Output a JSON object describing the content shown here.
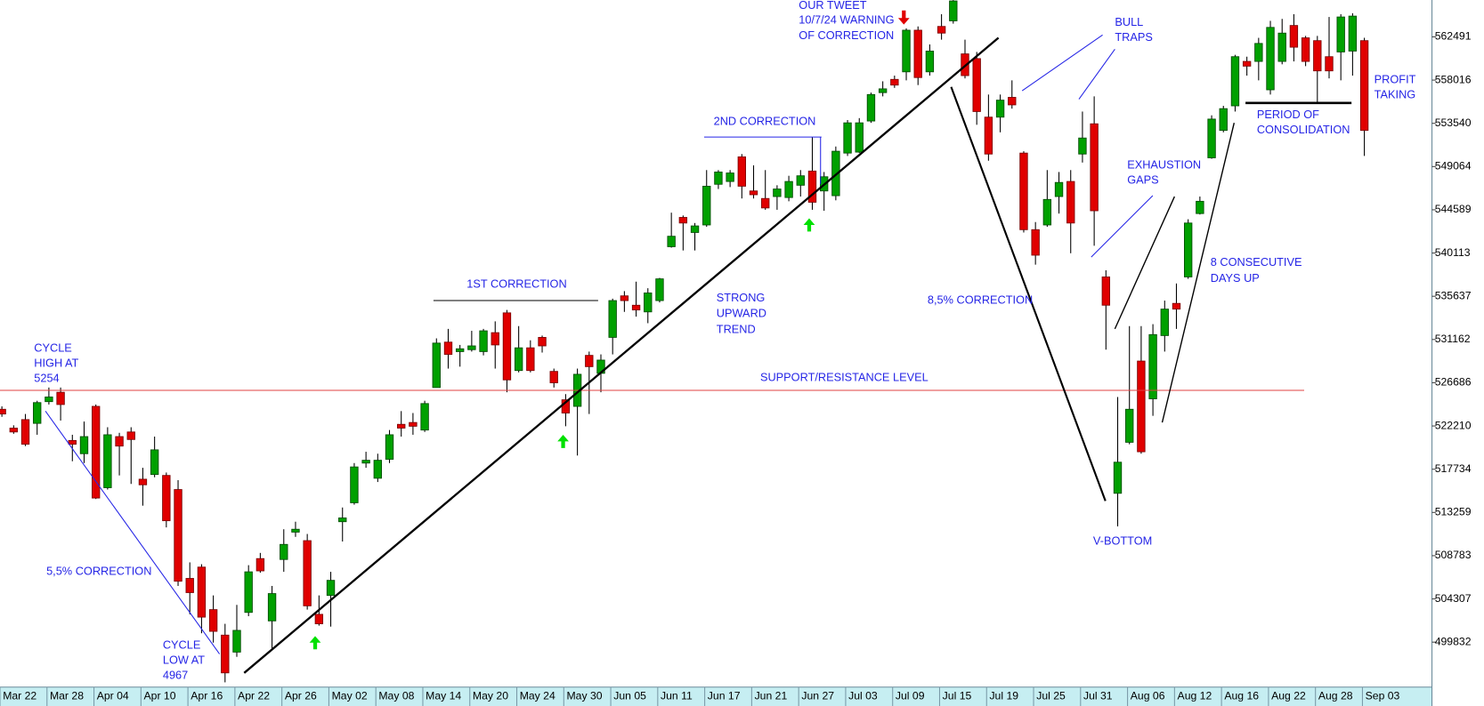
{
  "chart_data": {
    "type": "candlestick",
    "categories": [
      "Mar 22",
      null,
      null,
      null,
      "Mar 28",
      null,
      null,
      null,
      "Apr 04",
      null,
      null,
      null,
      "Apr 10",
      null,
      null,
      null,
      "Apr 16",
      null,
      null,
      null,
      "Apr 22",
      null,
      null,
      null,
      "Apr 26",
      null,
      null,
      null,
      "May 02",
      null,
      null,
      null,
      "May 08",
      null,
      null,
      null,
      "May 14",
      null,
      null,
      null,
      "May 20",
      null,
      null,
      null,
      "May 24",
      null,
      null,
      null,
      "May 30",
      null,
      null,
      null,
      "Jun 05",
      null,
      null,
      null,
      "Jun 11",
      null,
      null,
      null,
      "Jun 17",
      null,
      null,
      null,
      "Jun 21",
      null,
      null,
      null,
      "Jun 27",
      null,
      null,
      null,
      "Jul 03",
      null,
      null,
      null,
      "Jul 09",
      null,
      null,
      null,
      "Jul 15",
      null,
      null,
      null,
      "Jul 19",
      null,
      null,
      null,
      "Jul 25",
      null,
      null,
      null,
      "Jul 31",
      null,
      null,
      null,
      "Aug 06",
      null,
      null,
      null,
      "Aug 12",
      null,
      null,
      null,
      "Aug 16",
      null,
      null,
      null,
      "Aug 22",
      null,
      null,
      null,
      "Aug 28",
      null,
      null,
      null,
      "Sep 03"
    ],
    "open": [
      523940,
      521990,
      522870,
      522480,
      524730,
      525700,
      520710,
      519340,
      524240,
      515820,
      521110,
      521590,
      516700,
      517190,
      517090,
      515630,
      506430,
      507600,
      503200,
      500560,
      498800,
      502910,
      508480,
      502030,
      508390,
      511220,
      510340,
      502710,
      504670,
      512300,
      514260,
      518370,
      516800,
      518760,
      522380,
      522570,
      521790,
      526190,
      530890,
      529910,
      530110,
      529910,
      531870,
      533920,
      527950,
      530300,
      531380,
      527860,
      524920,
      524240,
      529520,
      527660,
      531380,
      535680,
      534710,
      534020,
      535190,
      540770,
      543800,
      542240,
      543020,
      547230,
      547520,
      550070,
      546540,
      545760,
      545960,
      545860,
      547130,
      548600,
      546540,
      546050,
      550460,
      550560,
      553780,
      556720,
      558090,
      558870,
      563180,
      558870,
      563570,
      564150,
      560730,
      560240,
      554180,
      554180,
      556230,
      550460,
      542530,
      543020,
      545960,
      547520,
      550360,
      553490,
      537640,
      515240,
      520520,
      528930,
      525020,
      531570,
      534900,
      537640,
      544200,
      549970,
      552810,
      555350,
      559950,
      559950,
      557010,
      559950,
      563670,
      562390,
      562100,
      560440,
      560930,
      561020,
      562100
    ],
    "high": [
      524240,
      522280,
      523450,
      524820,
      526190,
      526190,
      521300,
      522670,
      524430,
      522080,
      521500,
      522080,
      517880,
      521110,
      517390,
      516600,
      508090,
      507900,
      504670,
      501730,
      503690,
      507800,
      509070,
      505650,
      511520,
      512300,
      511030,
      504670,
      507110,
      513770,
      518370,
      519540,
      519340,
      521790,
      523750,
      523550,
      524820,
      531280,
      532260,
      530600,
      532060,
      532260,
      533040,
      534220,
      532550,
      531080,
      531570,
      528150,
      525510,
      528150,
      529910,
      529620,
      535390,
      536170,
      537150,
      536470,
      537540,
      544290,
      544000,
      543220,
      548700,
      548700,
      548700,
      550360,
      549190,
      548700,
      547130,
      548110,
      548700,
      552120,
      548500,
      551140,
      553880,
      554080,
      556720,
      557890,
      558480,
      563370,
      563570,
      561710,
      564840,
      566300,
      562200,
      560930,
      556520,
      556520,
      557990,
      550650,
      543320,
      548700,
      548500,
      548700,
      554760,
      556330,
      538330,
      525210,
      532550,
      532550,
      532750,
      535190,
      536960,
      543610,
      545960,
      554370,
      555350,
      560630,
      560440,
      562390,
      564150,
      564350,
      564840,
      562590,
      562590,
      564550,
      564840,
      564940,
      562390
    ],
    "low": [
      523160,
      521400,
      520130,
      521300,
      524430,
      522770,
      518560,
      518370,
      514650,
      515630,
      517090,
      516210,
      513960,
      516900,
      511710,
      505650,
      502710,
      500750,
      499780,
      495670,
      498310,
      502520,
      507020,
      498990,
      507110,
      510730,
      503200,
      501540,
      501440,
      510250,
      514060,
      517880,
      516410,
      518370,
      521110,
      521300,
      521590,
      526190,
      528150,
      528350,
      529910,
      529520,
      528150,
      525700,
      527760,
      527760,
      529810,
      526190,
      522180,
      519150,
      523450,
      525700,
      529620,
      534020,
      533530,
      532850,
      535000,
      540670,
      540380,
      540380,
      542830,
      546740,
      546940,
      545760,
      545760,
      544590,
      544590,
      545470,
      545960,
      544590,
      544490,
      545570,
      550160,
      550460,
      553590,
      556330,
      557210,
      557990,
      557500,
      558480,
      562200,
      563860,
      558190,
      553390,
      549670,
      552610,
      555060,
      542240,
      538910,
      542830,
      544200,
      540090,
      549480,
      540870,
      530110,
      511810,
      520320,
      519340,
      523260,
      529910,
      532260,
      537440,
      544100,
      549870,
      552610,
      554760,
      558480,
      557990,
      556520,
      559650,
      559950,
      559460,
      555740,
      558190,
      557990,
      558480,
      550160
    ],
    "close": [
      523450,
      521590,
      520320,
      524630,
      525210,
      524430,
      520320,
      521110,
      514750,
      521300,
      520130,
      520810,
      516120,
      519740,
      512400,
      506140,
      504960,
      502420,
      500950,
      496650,
      501050,
      507110,
      507210,
      504860,
      509950,
      511520,
      503590,
      501730,
      506230,
      512690,
      517970,
      518660,
      518660,
      521300,
      521990,
      522180,
      524530,
      530790,
      529620,
      530200,
      530500,
      532060,
      530600,
      526980,
      530300,
      527950,
      530500,
      526680,
      523550,
      527560,
      528350,
      529030,
      535190,
      535190,
      534220,
      535980,
      537440,
      541850,
      543220,
      542920,
      547030,
      548500,
      548400,
      547030,
      546150,
      544780,
      546740,
      547520,
      548110,
      545370,
      548010,
      550650,
      553590,
      553590,
      556520,
      557110,
      557500,
      563180,
      558280,
      561020,
      562880,
      566210,
      558480,
      554760,
      550360,
      555940,
      555450,
      542530,
      539890,
      545660,
      547420,
      543220,
      552020,
      544490,
      534710,
      518460,
      523940,
      519540,
      531670,
      534310,
      534310,
      543220,
      545470,
      553980,
      555060,
      560440,
      559460,
      561810,
      563470,
      562880,
      561420,
      559950,
      558970,
      558970,
      564550,
      564640,
      552810
    ],
    "up_color": "#00a000",
    "down_color": "#e00000",
    "ylim": [
      495178,
      566307
    ],
    "yticks": [
      562491,
      558016,
      553540,
      549064,
      544589,
      540113,
      535637,
      531162,
      526686,
      522210,
      517734,
      513259,
      508783,
      504307,
      499832
    ],
    "reference_line": {
      "value": 525900,
      "label": "SUPPORT/RESISTANCE LEVEL",
      "color": "#e04040"
    },
    "annotations": [
      [
        "CYCLE",
        "HIGH AT",
        "5254"
      ],
      [
        "5,5% CORRECTION"
      ],
      [
        "CYCLE",
        "LOW AT",
        "4967"
      ],
      [
        "1ST CORRECTION"
      ],
      [
        "STRONG",
        "UPWARD",
        "TREND"
      ],
      [
        "2ND CORRECTION"
      ],
      [
        "OUR TWEET",
        "10/7/24 WARNING",
        "OF CORRECTION"
      ],
      [
        "8,5% CORRECTION"
      ],
      [
        "BULL",
        "TRAPS"
      ],
      [
        "EXHAUSTION",
        "GAPS"
      ],
      [
        "V-BOTTOM"
      ],
      [
        "8 CONSECUTIVE",
        "DAYS UP"
      ],
      [
        "PERIOD OF",
        "CONSOLIDATION"
      ],
      [
        "PROFIT",
        "TAKING"
      ]
    ]
  }
}
